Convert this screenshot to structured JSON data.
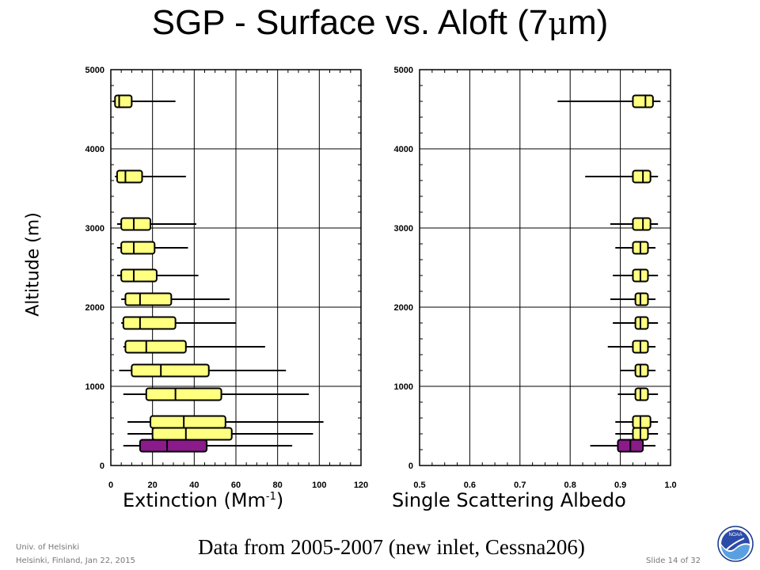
{
  "title": {
    "text": "SGP - Surface vs. Aloft (7",
    "mu": "μ",
    "suffix": "m)"
  },
  "ylabel": "Altitude (m)",
  "xlabels": {
    "extinction": "Extinction (Mm",
    "extinction_sup": "-1",
    "extinction_close": ")",
    "ssa": "Single Scattering Albedo"
  },
  "footnote": "Data from 2005-2007 (new inlet, Cessna206)",
  "footer": {
    "line1": "Univ. of Helsinki",
    "line2": "Helsinki, Finland, Jan 22, 2015",
    "slide": "Slide 14 of 32"
  },
  "logo": {
    "icon": "noaa-logo-icon",
    "text": "NOAA"
  },
  "colors": {
    "surface": "#8b1a8b",
    "aloft": "#ffff80",
    "edge": "#000000"
  },
  "chart_data": [
    {
      "type": "box",
      "orientation": "horizontal",
      "xlabel": "Extinction (Mm-1)",
      "ylabel": "Altitude (m)",
      "xlim": [
        0,
        120
      ],
      "ylim": [
        0,
        5000
      ],
      "xticks": [
        0,
        20,
        40,
        60,
        80,
        100,
        120
      ],
      "yticks": [
        0,
        1000,
        2000,
        3000,
        4000,
        5000
      ],
      "grid": true,
      "boxes": [
        {
          "alt": 4600,
          "whisker_lo": 1,
          "q1": 2,
          "median": 4,
          "q3": 10,
          "whisker_hi": 31,
          "surface": false
        },
        {
          "alt": 3650,
          "whisker_lo": 2,
          "q1": 3,
          "median": 7,
          "q3": 15,
          "whisker_hi": 36,
          "surface": false
        },
        {
          "alt": 3050,
          "whisker_lo": 3,
          "q1": 5,
          "median": 11,
          "q3": 19,
          "whisker_hi": 41,
          "surface": false
        },
        {
          "alt": 2750,
          "whisker_lo": 3,
          "q1": 5,
          "median": 11,
          "q3": 21,
          "whisker_hi": 37,
          "surface": false
        },
        {
          "alt": 2400,
          "whisker_lo": 3,
          "q1": 5,
          "median": 11,
          "q3": 22,
          "whisker_hi": 42,
          "surface": false
        },
        {
          "alt": 2100,
          "whisker_lo": 5,
          "q1": 7,
          "median": 14,
          "q3": 29,
          "whisker_hi": 57,
          "surface": false
        },
        {
          "alt": 1800,
          "whisker_lo": 5,
          "q1": 6,
          "median": 14,
          "q3": 31,
          "whisker_hi": 60,
          "surface": false
        },
        {
          "alt": 1500,
          "whisker_lo": 6,
          "q1": 7,
          "median": 17,
          "q3": 36,
          "whisker_hi": 74,
          "surface": false
        },
        {
          "alt": 1200,
          "whisker_lo": 4,
          "q1": 10,
          "median": 24,
          "q3": 47,
          "whisker_hi": 84,
          "surface": false
        },
        {
          "alt": 900,
          "whisker_lo": 6,
          "q1": 17,
          "median": 31,
          "q3": 53,
          "whisker_hi": 95,
          "surface": false
        },
        {
          "alt": 550,
          "whisker_lo": 8,
          "q1": 19,
          "median": 35,
          "q3": 55,
          "whisker_hi": 102,
          "surface": false
        },
        {
          "alt": 400,
          "whisker_lo": 8,
          "q1": 20,
          "median": 36,
          "q3": 58,
          "whisker_hi": 97,
          "surface": false
        },
        {
          "alt": 250,
          "whisker_lo": 6,
          "q1": 14,
          "median": 27,
          "q3": 46,
          "whisker_hi": 87,
          "surface": true
        }
      ]
    },
    {
      "type": "box",
      "orientation": "horizontal",
      "xlabel": "Single Scattering Albedo",
      "ylabel": "Altitude (m)",
      "xlim": [
        0.5,
        1.0
      ],
      "ylim": [
        0,
        5000
      ],
      "xticks": [
        0.5,
        0.6,
        0.7,
        0.8,
        0.9,
        1.0
      ],
      "xtick_labels": [
        "0.5",
        "0.6",
        "0.7",
        "0.8",
        "0.9",
        "1.0"
      ],
      "yticks": [
        0,
        1000,
        2000,
        3000,
        4000,
        5000
      ],
      "grid": true,
      "boxes": [
        {
          "alt": 4600,
          "whisker_lo": 0.775,
          "q1": 0.925,
          "median": 0.95,
          "q3": 0.965,
          "whisker_hi": 0.98,
          "surface": false
        },
        {
          "alt": 3650,
          "whisker_lo": 0.83,
          "q1": 0.925,
          "median": 0.945,
          "q3": 0.96,
          "whisker_hi": 0.975,
          "surface": false
        },
        {
          "alt": 3050,
          "whisker_lo": 0.88,
          "q1": 0.925,
          "median": 0.945,
          "q3": 0.96,
          "whisker_hi": 0.975,
          "surface": false
        },
        {
          "alt": 2750,
          "whisker_lo": 0.89,
          "q1": 0.925,
          "median": 0.94,
          "q3": 0.955,
          "whisker_hi": 0.97,
          "surface": false
        },
        {
          "alt": 2400,
          "whisker_lo": 0.885,
          "q1": 0.925,
          "median": 0.94,
          "q3": 0.955,
          "whisker_hi": 0.975,
          "surface": false
        },
        {
          "alt": 2100,
          "whisker_lo": 0.88,
          "q1": 0.93,
          "median": 0.94,
          "q3": 0.955,
          "whisker_hi": 0.97,
          "surface": false
        },
        {
          "alt": 1800,
          "whisker_lo": 0.885,
          "q1": 0.93,
          "median": 0.94,
          "q3": 0.955,
          "whisker_hi": 0.975,
          "surface": false
        },
        {
          "alt": 1500,
          "whisker_lo": 0.875,
          "q1": 0.925,
          "median": 0.94,
          "q3": 0.955,
          "whisker_hi": 0.97,
          "surface": false
        },
        {
          "alt": 1200,
          "whisker_lo": 0.9,
          "q1": 0.93,
          "median": 0.94,
          "q3": 0.955,
          "whisker_hi": 0.97,
          "surface": false
        },
        {
          "alt": 900,
          "whisker_lo": 0.895,
          "q1": 0.93,
          "median": 0.94,
          "q3": 0.955,
          "whisker_hi": 0.975,
          "surface": false
        },
        {
          "alt": 550,
          "whisker_lo": 0.89,
          "q1": 0.925,
          "median": 0.94,
          "q3": 0.96,
          "whisker_hi": 0.975,
          "surface": false
        },
        {
          "alt": 400,
          "whisker_lo": 0.89,
          "q1": 0.925,
          "median": 0.94,
          "q3": 0.955,
          "whisker_hi": 0.975,
          "surface": false
        },
        {
          "alt": 250,
          "whisker_lo": 0.84,
          "q1": 0.895,
          "median": 0.92,
          "q3": 0.945,
          "whisker_hi": 0.97,
          "surface": true
        }
      ]
    }
  ]
}
